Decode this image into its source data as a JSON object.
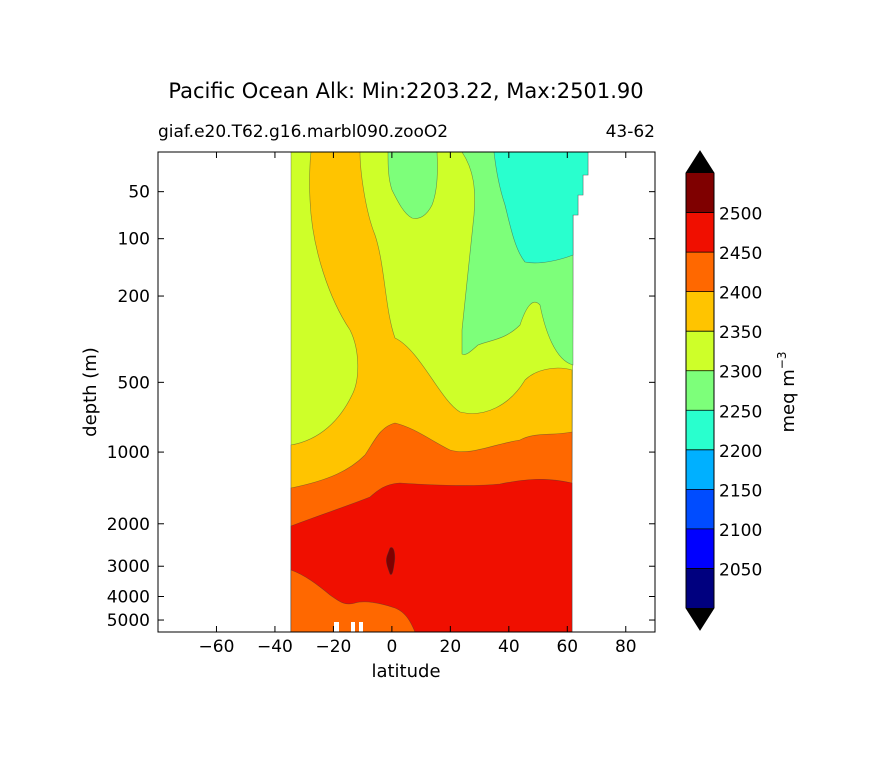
{
  "chart_data": {
    "type": "contour",
    "title": "Pacific Ocean Alk: Min:2203.22, Max:2501.90",
    "subtitle_left": "giaf.e20.T62.g16.marbl090.zooO2",
    "subtitle_right": "43-62",
    "xlabel": "latitude",
    "ylabel": "depth (m)",
    "xlim": [
      -80,
      90
    ],
    "x_ticks": [
      "−60",
      "−40",
      "−20",
      "0",
      "20",
      "40",
      "60",
      "80"
    ],
    "x_tick_values": [
      -60,
      -40,
      -20,
      0,
      20,
      40,
      60,
      80
    ],
    "y_ticks": [
      "50",
      "100",
      "200",
      "500",
      "1000",
      "2000",
      "3000",
      "4000",
      "5000"
    ],
    "y_tick_values": [
      50,
      100,
      200,
      500,
      1000,
      2000,
      3000,
      4000,
      5000
    ],
    "colorbar": {
      "label": "meq m",
      "label_superscript": "−3",
      "tick_labels": [
        "2050",
        "2100",
        "2150",
        "2200",
        "2250",
        "2300",
        "2350",
        "2400",
        "2450",
        "2500"
      ],
      "levels": [
        2000,
        2050,
        2100,
        2150,
        2200,
        2250,
        2300,
        2350,
        2400,
        2450,
        2500,
        2550
      ],
      "colors": [
        "#00007f",
        "#0000ff",
        "#004cff",
        "#00b0ff",
        "#29ffce",
        "#7dff7a",
        "#ceff29",
        "#ffc400",
        "#ff6800",
        "#f00f00",
        "#7f0000"
      ],
      "extend": "both",
      "under_color": "#000000",
      "over_color": "#000000"
    },
    "field_min": 2203.22,
    "field_max": 2501.9
  }
}
